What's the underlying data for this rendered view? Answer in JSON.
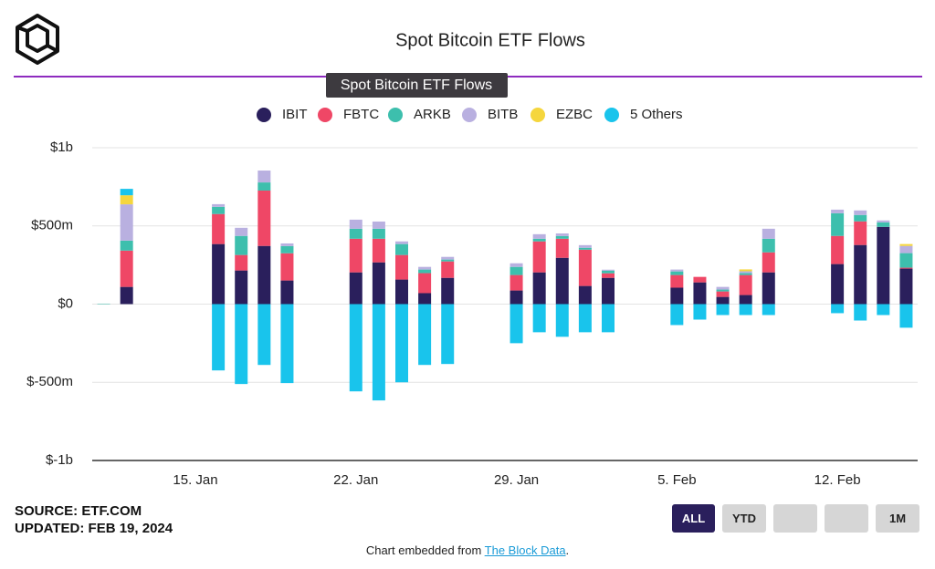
{
  "chart_data": {
    "type": "stacked-bar",
    "title": "Spot Bitcoin ETF Flows",
    "x": [
      "01-11",
      "01-12",
      "01-16",
      "01-17",
      "01-18",
      "01-19",
      "01-22",
      "01-23",
      "01-24",
      "01-25",
      "01-26",
      "01-29",
      "01-30",
      "01-31",
      "02-01",
      "02-02",
      "02-05",
      "02-06",
      "02-07",
      "02-08",
      "02-09",
      "02-12",
      "02-13",
      "02-14",
      "02-15"
    ],
    "xlim": [
      "01-11",
      "02-15"
    ],
    "xticks": [
      {
        "value": "01-15",
        "label": "15. Jan"
      },
      {
        "value": "01-22",
        "label": "22. Jan"
      },
      {
        "value": "01-29",
        "label": "29. Jan"
      },
      {
        "value": "02-05",
        "label": "5. Feb"
      },
      {
        "value": "02-12",
        "label": "12. Feb"
      }
    ],
    "ylim": [
      -1000,
      1000
    ],
    "yticks": [
      {
        "value": 1000,
        "label": "$1b"
      },
      {
        "value": 500,
        "label": "$500m"
      },
      {
        "value": 0,
        "label": "$0"
      },
      {
        "value": -500,
        "label": "$-500m"
      },
      {
        "value": -1000,
        "label": "$-1b"
      }
    ],
    "grid": true,
    "series": [
      {
        "name": "IBIT",
        "color": "#2a1f5c",
        "values": [
          0,
          110,
          384,
          215,
          372,
          151,
          203,
          267,
          157,
          70,
          168,
          87,
          203,
          296,
          116,
          168,
          105,
          139,
          46,
          58,
          203,
          256,
          378,
          494,
          227
        ]
      },
      {
        "name": "FBTC",
        "color": "#ef4766",
        "values": [
          0,
          232,
          192,
          99,
          354,
          174,
          215,
          151,
          157,
          128,
          105,
          99,
          198,
          122,
          232,
          29,
          81,
          35,
          35,
          128,
          128,
          180,
          151,
          0,
          6
        ]
      },
      {
        "name": "ARKB",
        "color": "#3dbfad",
        "values": [
          3,
          64,
          46,
          122,
          52,
          46,
          64,
          64,
          70,
          23,
          12,
          52,
          17,
          17,
          12,
          17,
          23,
          0,
          12,
          12,
          87,
          145,
          41,
          29,
          93
        ]
      },
      {
        "name": "BITB",
        "color": "#b9b0e0",
        "values": [
          0,
          232,
          17,
          52,
          76,
          17,
          58,
          46,
          17,
          17,
          17,
          23,
          29,
          17,
          17,
          6,
          12,
          0,
          17,
          12,
          64,
          23,
          29,
          12,
          46
        ]
      },
      {
        "name": "EZBC",
        "color": "#f5d63d",
        "values": [
          0,
          58,
          0,
          0,
          0,
          0,
          0,
          0,
          0,
          0,
          0,
          0,
          0,
          0,
          0,
          0,
          0,
          0,
          0,
          12,
          0,
          0,
          0,
          0,
          12
        ]
      },
      {
        "name": "5 Others",
        "color": "#19c4ec",
        "values": [
          0,
          41,
          -424,
          -511,
          -389,
          -505,
          -558,
          -616,
          -500,
          -389,
          -383,
          -250,
          -180,
          -209,
          -180,
          -180,
          -134,
          -99,
          -70,
          -70,
          -70,
          -58,
          -105,
          -70,
          -151
        ]
      }
    ]
  },
  "tooltip": "Spot Bitcoin ETF Flows",
  "source": "SOURCE: ETF.COM",
  "updated": "UPDATED: FEB 19, 2024",
  "range_buttons": [
    "ALL",
    "YTD",
    "1M"
  ],
  "footer": {
    "prefix": "Chart embedded from",
    "link": "The Block Data",
    "suffix": "."
  }
}
